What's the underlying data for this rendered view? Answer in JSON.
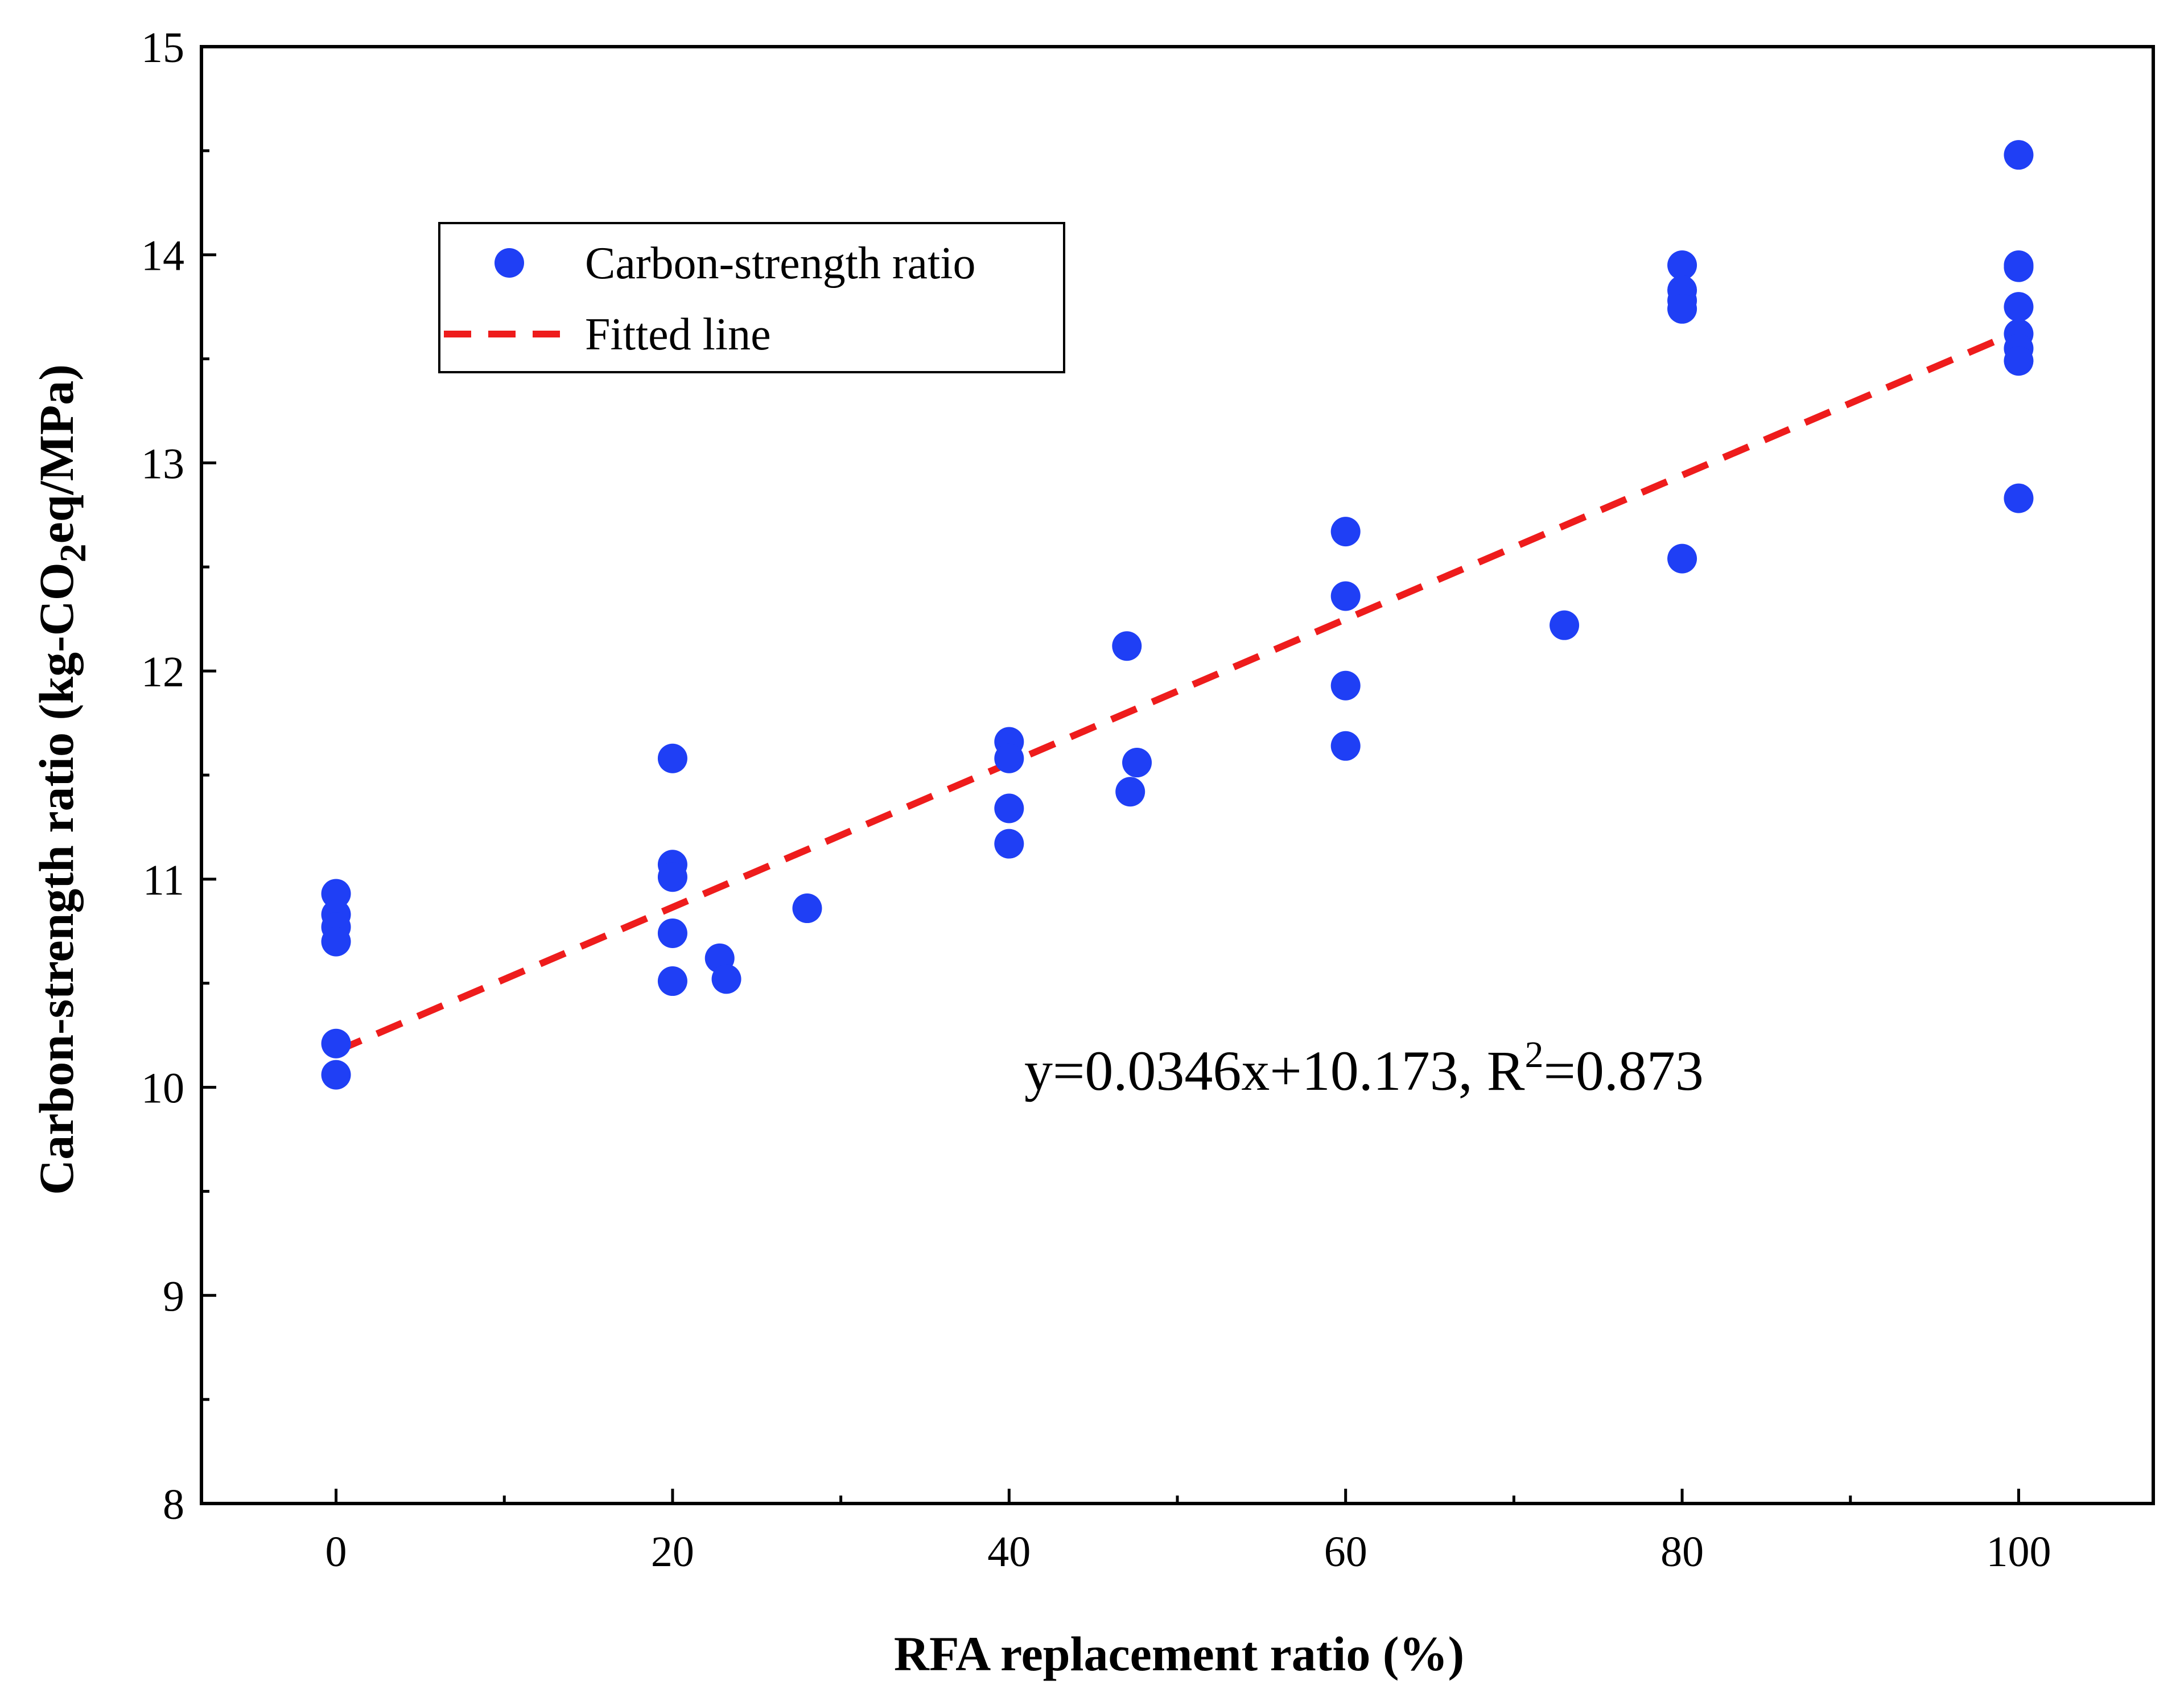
{
  "chart_data": {
    "type": "scatter",
    "title": "",
    "xlabel": "RFA replacement ratio (%)",
    "ylabel": {
      "prefix": "Carbon-strength ratio (kg-CO",
      "subscript": "2",
      "suffix": "eq/MPa)"
    },
    "xlim": [
      -8,
      108
    ],
    "ylim": [
      8,
      15
    ],
    "x_ticks": [
      0,
      20,
      40,
      60,
      80,
      100
    ],
    "x_tick_labels": [
      "0",
      "20",
      "40",
      "60",
      "80",
      "100"
    ],
    "x_minor_ticks": [
      10,
      30,
      50,
      70,
      90
    ],
    "y_ticks": [
      8,
      9,
      10,
      11,
      12,
      13,
      14,
      15
    ],
    "y_tick_labels": [
      "8",
      "9",
      "10",
      "11",
      "12",
      "13",
      "14",
      "15"
    ],
    "y_minor_ticks": [
      8.5,
      9.5,
      10.5,
      11.5,
      12.5,
      13.5,
      14.5
    ],
    "grid": false,
    "legend_position": "upper-left",
    "series": [
      {
        "name": "Carbon-strength ratio",
        "kind": "scatter",
        "color": "#1f3ff5",
        "points": [
          [
            0,
            10.93
          ],
          [
            0,
            10.83
          ],
          [
            0,
            10.77
          ],
          [
            0,
            10.7
          ],
          [
            0,
            10.21
          ],
          [
            0,
            10.06
          ],
          [
            20,
            11.58
          ],
          [
            20,
            11.07
          ],
          [
            20,
            11.01
          ],
          [
            20,
            10.74
          ],
          [
            20,
            10.51
          ],
          [
            22.8,
            10.62
          ],
          [
            23.2,
            10.52
          ],
          [
            28,
            10.86
          ],
          [
            40,
            11.66
          ],
          [
            40,
            11.58
          ],
          [
            40,
            11.34
          ],
          [
            40,
            11.17
          ],
          [
            47,
            12.12
          ],
          [
            47.2,
            11.42
          ],
          [
            47.6,
            11.56
          ],
          [
            60,
            12.67
          ],
          [
            60,
            12.36
          ],
          [
            60,
            11.93
          ],
          [
            60,
            11.64
          ],
          [
            73,
            12.22
          ],
          [
            80,
            13.95
          ],
          [
            80,
            13.83
          ],
          [
            80,
            13.78
          ],
          [
            80,
            13.74
          ],
          [
            80,
            12.54
          ],
          [
            100,
            14.48
          ],
          [
            100,
            13.95
          ],
          [
            100,
            13.94
          ],
          [
            100,
            13.75
          ],
          [
            100,
            13.62
          ],
          [
            100,
            13.55
          ],
          [
            100,
            13.49
          ],
          [
            100,
            12.83
          ]
        ]
      },
      {
        "name": "Fitted line",
        "kind": "line",
        "style": "dashed",
        "color": "#ee1c1c",
        "slope": 0.0346,
        "intercept": 10.173,
        "x_range": [
          0,
          100
        ]
      }
    ],
    "annotation": {
      "prefix": "y=0.0346x+10.173,  R",
      "superscript": "2",
      "suffix": "=0.873"
    }
  }
}
